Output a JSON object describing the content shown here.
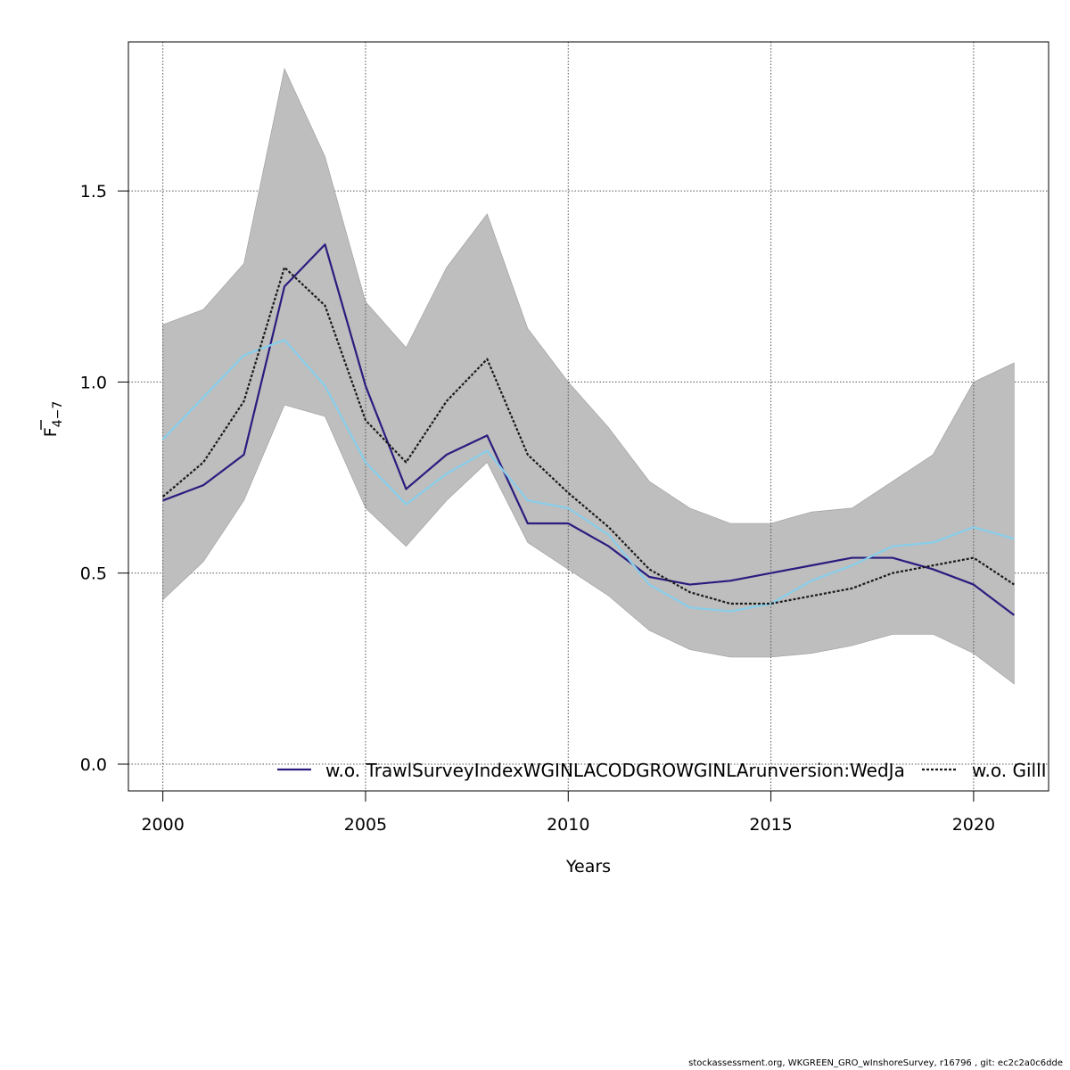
{
  "chart_data": {
    "type": "line",
    "title": "",
    "xlabel": "Years",
    "ylabel": "F̄ 4−7",
    "ylabel_main": "F",
    "ylabel_sub": "4−7",
    "xlim": [
      1999.15,
      2021.85
    ],
    "ylim": [
      -0.07,
      1.89
    ],
    "x_ticks": [
      2000,
      2005,
      2010,
      2015,
      2020
    ],
    "y_ticks": [
      0.0,
      0.5,
      1.0,
      1.5
    ],
    "y_tick_labels": [
      "0.0",
      "0.5",
      "1.0",
      "1.5"
    ],
    "grid": true,
    "legend_position": "bottom",
    "x": [
      2000,
      2001,
      2002,
      2003,
      2004,
      2005,
      2006,
      2007,
      2008,
      2009,
      2010,
      2011,
      2012,
      2013,
      2014,
      2015,
      2016,
      2017,
      2018,
      2019,
      2020,
      2021
    ],
    "band": {
      "color": "#bebebe",
      "lower": [
        0.43,
        0.53,
        0.69,
        0.94,
        0.91,
        0.67,
        0.57,
        0.69,
        0.79,
        0.58,
        0.51,
        0.44,
        0.35,
        0.3,
        0.28,
        0.28,
        0.29,
        0.31,
        0.34,
        0.34,
        0.29,
        0.21
      ],
      "upper": [
        1.15,
        1.19,
        1.31,
        1.82,
        1.59,
        1.21,
        1.09,
        1.3,
        1.44,
        1.14,
        1.0,
        0.88,
        0.74,
        0.67,
        0.63,
        0.63,
        0.66,
        0.67,
        0.74,
        0.81,
        1.0,
        1.05
      ]
    },
    "series": [
      {
        "name": "w.o. TrawlSurveyIndexWGINLACODGROWGINLArunversion:WedJa",
        "color": "#2a1c7f",
        "dash": false,
        "values": [
          0.69,
          0.73,
          0.81,
          1.25,
          1.36,
          0.99,
          0.72,
          0.81,
          0.86,
          0.63,
          0.63,
          0.57,
          0.49,
          0.47,
          0.48,
          0.5,
          0.52,
          0.54,
          0.54,
          0.51,
          0.47,
          0.39
        ]
      },
      {
        "color": "#87ceeb",
        "dash": false,
        "values": [
          0.85,
          0.96,
          1.07,
          1.11,
          0.99,
          0.79,
          0.68,
          0.76,
          0.82,
          0.69,
          0.67,
          0.6,
          0.47,
          0.41,
          0.4,
          0.42,
          0.48,
          0.52,
          0.57,
          0.58,
          0.62,
          0.59
        ]
      },
      {
        "name": "w.o. GillI",
        "color": "#1a1a1a",
        "dash": true,
        "values": [
          0.7,
          0.79,
          0.95,
          1.3,
          1.2,
          0.9,
          0.79,
          0.95,
          1.06,
          0.81,
          0.71,
          0.62,
          0.51,
          0.45,
          0.42,
          0.42,
          0.44,
          0.46,
          0.5,
          0.52,
          0.54,
          0.47
        ]
      }
    ]
  },
  "legend": {
    "item1_label": "w.o. TrawlSurveyIndexWGINLACODGROWGINLArunversion:WedJa",
    "item2_label": "w.o. GillI"
  },
  "footer": {
    "text": "stockassessment.org, WKGREEN_GRO_wInshoreSurvey, r16796 , git: ec2c2a0c6dde"
  }
}
